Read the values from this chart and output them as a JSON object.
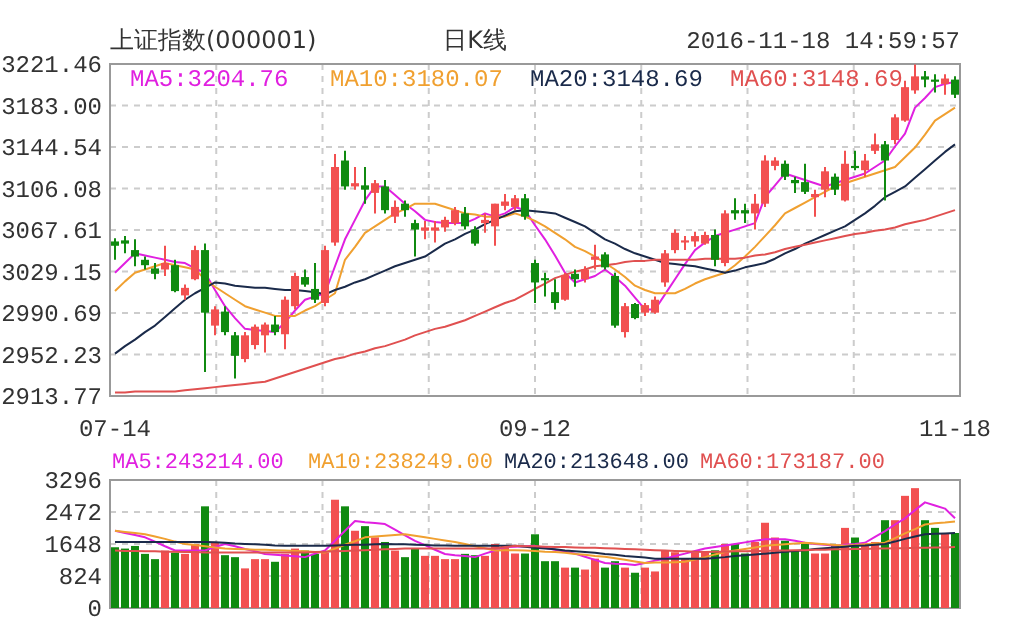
{
  "chart_data": [
    {
      "type": "candlestick",
      "title": "上证指数(000001)",
      "subtitle": "日K线",
      "annotations": [
        "2016-11-18 14:59:57"
      ],
      "categories": [
        "07-14",
        null,
        null,
        null,
        null,
        null,
        null,
        null,
        null,
        null,
        null,
        null,
        null,
        null,
        null,
        null,
        null,
        null,
        null,
        null,
        null,
        null,
        null,
        null,
        null,
        null,
        null,
        null,
        null,
        null,
        null,
        null,
        null,
        null,
        null,
        null,
        null,
        null,
        null,
        null,
        null,
        null,
        "09-12",
        null,
        null,
        null,
        null,
        null,
        null,
        null,
        null,
        null,
        null,
        null,
        null,
        null,
        null,
        null,
        null,
        null,
        null,
        null,
        null,
        null,
        null,
        null,
        null,
        null,
        null,
        null,
        null,
        null,
        null,
        null,
        null,
        null,
        null,
        null,
        null,
        null,
        null,
        null,
        null,
        null,
        "11-18"
      ],
      "ohlc": [
        [
          3057,
          3060,
          3040,
          3053
        ],
        [
          3058,
          3062,
          3046,
          3055
        ],
        [
          3049,
          3059,
          3034,
          3043
        ],
        [
          3040,
          3043,
          3031,
          3035
        ],
        [
          3032,
          3037,
          3022,
          3027
        ],
        [
          3031,
          3053,
          3025,
          3037
        ],
        [
          3035,
          3040,
          3010,
          3011
        ],
        [
          3007,
          3017,
          3003,
          3014
        ],
        [
          3022,
          3053,
          3021,
          3049
        ],
        [
          3049,
          3055,
          2936,
          2991
        ],
        [
          2979,
          2997,
          2970,
          2994
        ],
        [
          2992,
          2997,
          2970,
          2973
        ],
        [
          2970,
          2973,
          2930,
          2951
        ],
        [
          2948,
          2973,
          2945,
          2970
        ],
        [
          2961,
          2980,
          2957,
          2978
        ],
        [
          2970,
          2982,
          2954,
          2980
        ],
        [
          2980,
          2988,
          2970,
          2973
        ],
        [
          2971,
          3006,
          2957,
          3003
        ],
        [
          2997,
          3028,
          2994,
          3025
        ],
        [
          3024,
          3031,
          3015,
          3017
        ],
        [
          3013,
          3037,
          3000,
          3003
        ],
        [
          3000,
          3053,
          2997,
          3049
        ],
        [
          3056,
          3138,
          3053,
          3126
        ],
        [
          3132,
          3141,
          3105,
          3108
        ],
        [
          3108,
          3126,
          3105,
          3111
        ],
        [
          3109,
          3126,
          3092,
          3105
        ],
        [
          3102,
          3114,
          3083,
          3111
        ],
        [
          3108,
          3114,
          3083,
          3086
        ],
        [
          3080,
          3095,
          3074,
          3089
        ],
        [
          3092,
          3095,
          3080,
          3086
        ],
        [
          3074,
          3077,
          3043,
          3068
        ],
        [
          3067,
          3076,
          3059,
          3070
        ],
        [
          3067,
          3076,
          3056,
          3070
        ],
        [
          3070,
          3080,
          3066,
          3077
        ],
        [
          3074,
          3089,
          3072,
          3086
        ],
        [
          3083,
          3089,
          3068,
          3071
        ],
        [
          3068,
          3071,
          3053,
          3055
        ],
        [
          3074,
          3083,
          3065,
          3077
        ],
        [
          3071,
          3092,
          3053,
          3092
        ],
        [
          3090,
          3101,
          3086,
          3094
        ],
        [
          3089,
          3100,
          3086,
          3097
        ],
        [
          3097,
          3101,
          3077,
          3080
        ],
        [
          3037,
          3040,
          3000,
          3019
        ],
        [
          3023,
          3028,
          3006,
          3021
        ],
        [
          3010,
          3022,
          2994,
          3000
        ],
        [
          3003,
          3028,
          3002,
          3026
        ],
        [
          3027,
          3031,
          3015,
          3022
        ],
        [
          3022,
          3034,
          3019,
          3031
        ],
        [
          3040,
          3054,
          3031,
          3043
        ],
        [
          3045,
          3047,
          3031,
          3033
        ],
        [
          3025,
          3028,
          2977,
          2979
        ],
        [
          2973,
          3000,
          2968,
          2997
        ],
        [
          2999,
          3000,
          2985,
          2986
        ],
        [
          2991,
          3000,
          2988,
          2998
        ],
        [
          2991,
          3006,
          2990,
          3003
        ],
        [
          3019,
          3049,
          3015,
          3046
        ],
        [
          3049,
          3068,
          3046,
          3065
        ],
        [
          3056,
          3062,
          3049,
          3058
        ],
        [
          3057,
          3066,
          3052,
          3062
        ],
        [
          3055,
          3066,
          3054,
          3063
        ],
        [
          3063,
          3068,
          3034,
          3040
        ],
        [
          3037,
          3086,
          3034,
          3083
        ],
        [
          3086,
          3097,
          3077,
          3083
        ],
        [
          3086,
          3092,
          3074,
          3083
        ],
        [
          3083,
          3101,
          3068,
          3092
        ],
        [
          3092,
          3137,
          3089,
          3132
        ],
        [
          3127,
          3135,
          3123,
          3132
        ],
        [
          3129,
          3132,
          3114,
          3117
        ],
        [
          3114,
          3117,
          3102,
          3111
        ],
        [
          3112,
          3129,
          3101,
          3103
        ],
        [
          3098,
          3105,
          3080,
          3101
        ],
        [
          3105,
          3126,
          3098,
          3122
        ],
        [
          3117,
          3120,
          3100,
          3105
        ],
        [
          3095,
          3141,
          3094,
          3129
        ],
        [
          3127,
          3141,
          3123,
          3125
        ],
        [
          3123,
          3138,
          3117,
          3132
        ],
        [
          3141,
          3157,
          3138,
          3147
        ],
        [
          3147,
          3150,
          3095,
          3132
        ],
        [
          3151,
          3175,
          3147,
          3172
        ],
        [
          3169,
          3206,
          3168,
          3200
        ],
        [
          3197,
          3221,
          3194,
          3210
        ],
        [
          3210,
          3215,
          3200,
          3207
        ],
        [
          3207,
          3212,
          3195,
          3205
        ],
        [
          3203,
          3212,
          3193,
          3208
        ],
        [
          3207,
          3210,
          3190,
          3193
        ]
      ],
      "series": [
        {
          "type": "line",
          "name": "MA5:3204.76",
          "color": "#e020e0",
          "values": [
            3028,
            3037,
            3046,
            3044,
            3042,
            3040,
            3038,
            3037,
            3032,
            3028,
            3012,
            2997,
            2986,
            2976,
            2975,
            2974,
            2973,
            2982,
            2993,
            3003,
            3006,
            3009,
            3034,
            3059,
            3077,
            3095,
            3108,
            3108,
            3100,
            3092,
            3085,
            3077,
            3075,
            3074,
            3074,
            3074,
            3078,
            3083,
            3080,
            3083,
            3089,
            3086,
            3072,
            3059,
            3044,
            3028,
            3019,
            3022,
            3025,
            3031,
            3024,
            3016,
            3005,
            2994,
            2994,
            3008,
            3022,
            3036,
            3049,
            3056,
            3062,
            3065,
            3068,
            3071,
            3074,
            3098,
            3109,
            3120,
            3117,
            3114,
            3111,
            3108,
            3111,
            3114,
            3117,
            3120,
            3126,
            3132,
            3145,
            3157,
            3181,
            3190,
            3200,
            3203,
            3205
          ]
        },
        {
          "type": "line",
          "name": "MA10:3180.07",
          "color": "#f0a030",
          "values": [
            3011,
            3020,
            3028,
            3031,
            3034,
            3037,
            3035,
            3033,
            3031,
            3022,
            3015,
            3009,
            3003,
            2997,
            2994,
            2991,
            2988,
            2988,
            2988,
            2993,
            2997,
            3003,
            3009,
            3040,
            3052,
            3065,
            3071,
            3077,
            3083,
            3087,
            3092,
            3092,
            3092,
            3089,
            3086,
            3083,
            3082,
            3080,
            3080,
            3080,
            3083,
            3080,
            3076,
            3071,
            3065,
            3059,
            3052,
            3048,
            3043,
            3037,
            3031,
            3024,
            3016,
            3012,
            3009,
            3009,
            3009,
            3013,
            3018,
            3022,
            3025,
            3028,
            3035,
            3043,
            3052,
            3062,
            3072,
            3083,
            3088,
            3093,
            3098,
            3103,
            3108,
            3111,
            3114,
            3117,
            3120,
            3123,
            3126,
            3135,
            3144,
            3156,
            3169,
            3175,
            3181
          ]
        },
        {
          "type": "line",
          "name": "MA20:3148.69",
          "color": "#1a2a4a",
          "values": [
            2953,
            2960,
            2966,
            2973,
            2979,
            2987,
            2995,
            3003,
            3009,
            3014,
            3019,
            3018,
            3016,
            3015,
            3014,
            3014,
            3013,
            3012,
            3012,
            3011,
            3010,
            3008,
            3012,
            3015,
            3019,
            3022,
            3026,
            3030,
            3034,
            3037,
            3040,
            3043,
            3049,
            3055,
            3059,
            3064,
            3068,
            3073,
            3077,
            3081,
            3085,
            3086,
            3085,
            3084,
            3083,
            3079,
            3075,
            3071,
            3065,
            3059,
            3055,
            3050,
            3046,
            3043,
            3040,
            3037,
            3036,
            3035,
            3034,
            3032,
            3030,
            3028,
            3030,
            3033,
            3035,
            3037,
            3041,
            3046,
            3050,
            3055,
            3059,
            3063,
            3067,
            3071,
            3077,
            3083,
            3090,
            3098,
            3103,
            3108,
            3116,
            3124,
            3132,
            3140,
            3147
          ]
        },
        {
          "type": "line",
          "name": "MA60:3148.69",
          "color": "#e05050",
          "values": [
            2917,
            2917,
            2918,
            2918,
            2918,
            2918,
            2918,
            2919,
            2920,
            2921,
            2922,
            2923,
            2924,
            2925,
            2926,
            2927,
            2930,
            2933,
            2936,
            2939,
            2942,
            2945,
            2948,
            2950,
            2953,
            2955,
            2958,
            2960,
            2963,
            2966,
            2970,
            2973,
            2976,
            2978,
            2981,
            2984,
            2988,
            2992,
            2996,
            3000,
            3003,
            3008,
            3013,
            3018,
            3023,
            3026,
            3029,
            3031,
            3034,
            3035,
            3036,
            3038,
            3039,
            3039,
            3040,
            3040,
            3040,
            3040,
            3040,
            3041,
            3041,
            3041,
            3041,
            3042,
            3044,
            3045,
            3047,
            3050,
            3052,
            3054,
            3056,
            3058,
            3060,
            3062,
            3064,
            3065,
            3067,
            3068,
            3070,
            3073,
            3075,
            3077,
            3080,
            3083,
            3086
          ]
        }
      ],
      "ylim": [
        2913.77,
        3221.46
      ],
      "yticks": [
        2913.77,
        2952.23,
        2990.69,
        3029.15,
        3067.61,
        3106.08,
        3144.54,
        {
          "value": 3183,
          "label": "3183.00"
        },
        3221.46
      ],
      "grid": true,
      "legend": "top",
      "marker": "none"
    },
    {
      "type": "bar",
      "categories": [
        null,
        null,
        null,
        null,
        null,
        null,
        null,
        null,
        null,
        null,
        null,
        null,
        null,
        null,
        null,
        null,
        null,
        null,
        null,
        null,
        null,
        null,
        null,
        null,
        null,
        null,
        null,
        null,
        null,
        null,
        null,
        null,
        null,
        null,
        null,
        null,
        null,
        null,
        null,
        null,
        null,
        null,
        null,
        null,
        null,
        null,
        null,
        null,
        null,
        null,
        null,
        null,
        null,
        null,
        null,
        null,
        null,
        null,
        null,
        null,
        null,
        null,
        null,
        null,
        null,
        null,
        null,
        null,
        null,
        null,
        null,
        null,
        null,
        null,
        null,
        null,
        null,
        null,
        null,
        null,
        null,
        null,
        null,
        null,
        null
      ],
      "series": [
        {
          "type": "bar",
          "values": [
            1564,
            1530,
            1598,
            1394,
            1258,
            1479,
            1428,
            1394,
            1649,
            2618,
            1700,
            1360,
            1309,
            1020,
            1258,
            1258,
            1190,
            1394,
            1530,
            1479,
            1394,
            1428,
            2788,
            2618,
            1989,
            2108,
            1819,
            1700,
            1479,
            1309,
            1530,
            1343,
            1343,
            1258,
            1258,
            1394,
            1360,
            1343,
            1649,
            1600,
            1403,
            1403,
            1898,
            1205,
            1205,
            1040,
            1040,
            990,
            1271,
            1040,
            1205,
            1040,
            908,
            1040,
            941,
            1485,
            1436,
            1271,
            1436,
            1436,
            1485,
            1650,
            1650,
            1403,
            1700,
            2195,
            1815,
            1733,
            1485,
            1650,
            1403,
            1403,
            1600,
            2063,
            1815,
            1650,
            1700,
            2261,
            2261,
            2888,
            3086,
            2261,
            2063,
            1931,
            1931
          ],
          "colors": [
            "#108a10",
            "#108a10",
            "#108a10",
            "#108a10",
            "#108a10",
            "#f25050",
            "#108a10",
            "#f25050",
            "#f25050",
            "#108a10",
            "#f25050",
            "#108a10",
            "#108a10",
            "#f25050",
            "#f25050",
            "#f25050",
            "#108a10",
            "#f25050",
            "#f25050",
            "#108a10",
            "#108a10",
            "#f25050",
            "#f25050",
            "#108a10",
            "#f25050",
            "#108a10",
            "#f25050",
            "#108a10",
            "#f25050",
            "#108a10",
            "#108a10",
            "#f25050",
            "#f25050",
            "#f25050",
            "#f25050",
            "#108a10",
            "#108a10",
            "#f25050",
            "#f25050",
            "#f25050",
            "#f25050",
            "#108a10",
            "#108a10",
            "#108a10",
            "#108a10",
            "#f25050",
            "#108a10",
            "#f25050",
            "#f25050",
            "#108a10",
            "#108a10",
            "#f25050",
            "#108a10",
            "#f25050",
            "#f25050",
            "#f25050",
            "#f25050",
            "#f25050",
            "#f25050",
            "#f25050",
            "#108a10",
            "#f25050",
            "#108a10",
            "#108a10",
            "#f25050",
            "#f25050",
            "#f25050",
            "#108a10",
            "#108a10",
            "#108a10",
            "#f25050",
            "#f25050",
            "#108a10",
            "#f25050",
            "#108a10",
            "#f25050",
            "#f25050",
            "#108a10",
            "#f25050",
            "#f25050",
            "#f25050",
            "#108a10",
            "#108a10",
            "#f25050",
            "#108a10"
          ]
        },
        {
          "type": "line",
          "name": "MA5:243214.00",
          "color": "#e020e0",
          "values": [
            1990,
            1930,
            1880,
            1820,
            1710,
            1590,
            1480,
            1480,
            1480,
            1480,
            1570,
            1650,
            1590,
            1520,
            1460,
            1390,
            1370,
            1350,
            1330,
            1310,
            1400,
            1480,
            1730,
            1990,
            2240,
            2210,
            2190,
            2160,
            2020,
            1870,
            1730,
            1620,
            1500,
            1390,
            1360,
            1340,
            1310,
            1400,
            1480,
            1570,
            1580,
            1590,
            1600,
            1550,
            1500,
            1450,
            1400,
            1320,
            1240,
            1160,
            1140,
            1130,
            1110,
            1160,
            1220,
            1270,
            1340,
            1400,
            1470,
            1530,
            1570,
            1610,
            1650,
            1690,
            1730,
            1770,
            1770,
            1770,
            1730,
            1680,
            1650,
            1630,
            1600,
            1630,
            1650,
            1680,
            1830,
            1980,
            2150,
            2310,
            2520,
            2720,
            2640,
            2560,
            2310
          ]
        },
        {
          "type": "line",
          "name": "MA10:238249.00",
          "color": "#f0a030",
          "values": [
            1990,
            1960,
            1930,
            1900,
            1840,
            1780,
            1710,
            1650,
            1620,
            1590,
            1560,
            1530,
            1520,
            1510,
            1500,
            1500,
            1490,
            1480,
            1470,
            1460,
            1440,
            1430,
            1530,
            1630,
            1720,
            1820,
            1840,
            1860,
            1880,
            1900,
            1860,
            1820,
            1780,
            1740,
            1700,
            1650,
            1590,
            1540,
            1480,
            1490,
            1490,
            1480,
            1470,
            1450,
            1440,
            1420,
            1390,
            1370,
            1340,
            1320,
            1280,
            1240,
            1200,
            1160,
            1170,
            1170,
            1180,
            1190,
            1250,
            1310,
            1380,
            1440,
            1480,
            1520,
            1560,
            1600,
            1620,
            1640,
            1660,
            1680,
            1660,
            1640,
            1620,
            1600,
            1620,
            1640,
            1660,
            1680,
            1800,
            1920,
            2030,
            2150,
            2180,
            2200,
            2230
          ]
        },
        {
          "type": "line",
          "name": "MA20:213648.00",
          "color": "#1a2a4a",
          "values": [
            1700,
            1700,
            1700,
            1700,
            1700,
            1700,
            1700,
            1700,
            1700,
            1700,
            1690,
            1680,
            1660,
            1650,
            1640,
            1630,
            1610,
            1600,
            1600,
            1600,
            1600,
            1600,
            1610,
            1620,
            1630,
            1630,
            1640,
            1650,
            1640,
            1640,
            1630,
            1620,
            1610,
            1610,
            1600,
            1600,
            1600,
            1600,
            1600,
            1600,
            1600,
            1580,
            1550,
            1530,
            1510,
            1480,
            1460,
            1440,
            1420,
            1390,
            1370,
            1340,
            1320,
            1300,
            1270,
            1270,
            1270,
            1270,
            1270,
            1270,
            1290,
            1310,
            1340,
            1360,
            1380,
            1400,
            1420,
            1450,
            1470,
            1490,
            1520,
            1540,
            1560,
            1580,
            1600,
            1610,
            1630,
            1650,
            1710,
            1780,
            1840,
            1900,
            1910,
            1920,
            1930
          ]
        },
        {
          "type": "line",
          "name": "MA60:173187.00",
          "color": "#e05050",
          "values": [
            1480,
            1470,
            1470,
            1460,
            1460,
            1450,
            1450,
            1440,
            1440,
            1430,
            1430,
            1430,
            1430,
            1430,
            1430,
            1430,
            1430,
            1430,
            1430,
            1430,
            1440,
            1450,
            1460,
            1470,
            1480,
            1490,
            1500,
            1510,
            1520,
            1530,
            1530,
            1530,
            1530,
            1530,
            1530,
            1530,
            1530,
            1530,
            1530,
            1570,
            1600,
            1590,
            1590,
            1580,
            1570,
            1570,
            1560,
            1550,
            1550,
            1540,
            1530,
            1520,
            1510,
            1500,
            1490,
            1480,
            1470,
            1460,
            1450,
            1440,
            1450,
            1450,
            1460,
            1460,
            1470,
            1470,
            1480,
            1480,
            1490,
            1490,
            1500,
            1500,
            1510,
            1510,
            1520,
            1520,
            1530,
            1530,
            1540,
            1540,
            1550,
            1550,
            1560,
            1560,
            1570
          ]
        }
      ],
      "ylim": [
        0,
        3296
      ],
      "yticks": [
        0,
        824,
        1648,
        2472,
        3296
      ],
      "grid": true,
      "tick_labels": "y",
      "legend": "top",
      "marker": "none"
    }
  ]
}
